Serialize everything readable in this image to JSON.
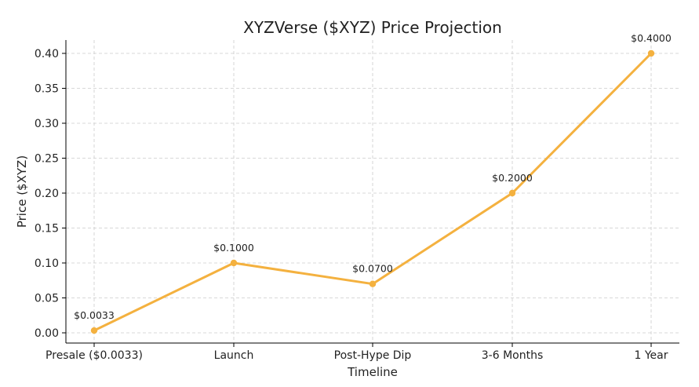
{
  "chart_data": {
    "type": "line",
    "title": "XYZVerse ($XYZ) Price Projection",
    "xlabel": "Timeline",
    "ylabel": "Price ($XYZ)",
    "categories": [
      "Presale ($0.0033)",
      "Launch",
      "Post-Hype Dip",
      "3-6 Months",
      "1 Year"
    ],
    "series": [
      {
        "values": [
          0.0033,
          0.1,
          0.07,
          0.2,
          0.4
        ],
        "color": "#f4b13f"
      }
    ],
    "data_labels": [
      "$0.0033",
      "$0.1000",
      "$0.0700",
      "$0.2000",
      "$0.4000"
    ],
    "ylim": [
      -0.015,
      0.42
    ],
    "yticks": [
      0.0,
      0.05,
      0.1,
      0.15,
      0.2,
      0.25,
      0.3,
      0.35,
      0.4
    ],
    "ytick_labels": [
      "0.00",
      "0.05",
      "0.10",
      "0.15",
      "0.20",
      "0.25",
      "0.30",
      "0.35",
      "0.40"
    ],
    "grid": true,
    "marker": "circle"
  }
}
